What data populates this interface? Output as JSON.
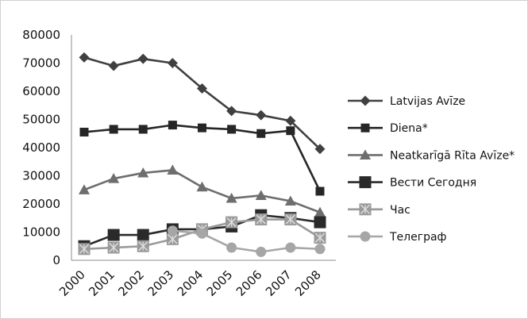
{
  "chart_data": {
    "type": "line",
    "title": "",
    "xlabel": "",
    "ylabel": "",
    "x": [
      "2000",
      "2001",
      "2002",
      "2003",
      "2004",
      "2005",
      "2006",
      "2007",
      "2008"
    ],
    "ylim": [
      0,
      80000
    ],
    "yticks": [
      "0",
      "10000",
      "20000",
      "30000",
      "40000",
      "50000",
      "60000",
      "70000",
      "80000"
    ],
    "grid": false,
    "legend_position": "right",
    "series": [
      {
        "name": "Latvijas Avīze",
        "marker": "diamond",
        "color": "#404040",
        "values": [
          72000,
          69000,
          71500,
          70000,
          61000,
          53000,
          51500,
          49500,
          39500
        ]
      },
      {
        "name": "Diena*",
        "marker": "square",
        "color": "#262626",
        "values": [
          45500,
          46500,
          46500,
          48000,
          47000,
          46500,
          45000,
          46000,
          24500
        ]
      },
      {
        "name": "Neatkarīgā Rīta Avīze*",
        "marker": "triangle",
        "color": "#6e6e6e",
        "values": [
          25000,
          29000,
          31000,
          32000,
          26000,
          22000,
          23000,
          21000,
          17000
        ]
      },
      {
        "name": "Вести Сегодня",
        "marker": "big-square",
        "color": "#2a2a2a",
        "values": [
          5000,
          9000,
          9000,
          11000,
          11000,
          12000,
          16000,
          15000,
          13500
        ]
      },
      {
        "name": "Час",
        "marker": "x-square",
        "color": "#9a9a9a",
        "values": [
          4000,
          4500,
          5000,
          7500,
          11000,
          13500,
          14500,
          14500,
          8000
        ]
      },
      {
        "name": "Телеграф",
        "marker": "circle",
        "color": "#a6a6a6",
        "values": [
          null,
          null,
          null,
          10500,
          9500,
          4500,
          3000,
          4500,
          4000
        ]
      }
    ]
  }
}
